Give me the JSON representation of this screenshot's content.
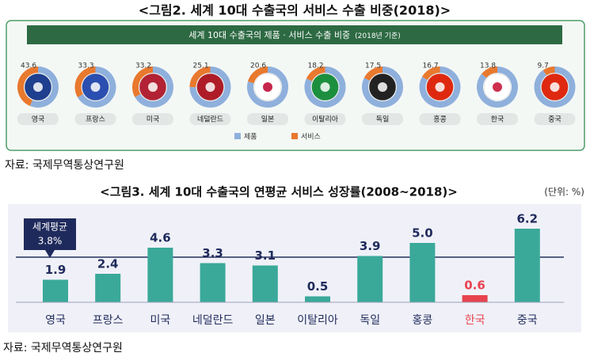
{
  "chart_data": [
    {
      "type": "donut",
      "title": "<그림2. 세계 10대 수출국의 서비스 수출 비중(2018)>",
      "subtitle": "세계 10대 수출국의 제품 · 서비스 수출 비중",
      "note": "(2018년 기준)",
      "categories": [
        "영국",
        "프랑스",
        "미국",
        "네덜란드",
        "일본",
        "이탈리아",
        "독일",
        "홍콩",
        "한국",
        "중국"
      ],
      "series": [
        {
          "name": "제품",
          "color": "#8fb0dc",
          "values": [
            56.4,
            66.7,
            66.8,
            74.9,
            79.4,
            81.8,
            82.5,
            83.3,
            86.2,
            90.3
          ]
        },
        {
          "name": "서비스",
          "color": "#e8792e",
          "values": [
            43.6,
            33.3,
            33.2,
            25.1,
            20.6,
            18.2,
            17.5,
            16.7,
            13.8,
            9.7
          ],
          "value_labels": [
            "43.6",
            "33.3",
            "33.2",
            "25.1",
            "20.6",
            "18.2",
            "17.5",
            "16.7",
            "13.8",
            "9.7"
          ]
        }
      ],
      "source": "자료: 국제무역통상연구원"
    },
    {
      "type": "bar",
      "title": "<그림3. 세계 10대 수출국의 연평균 서비스 성장률(2008~2018)>",
      "unit": "(단위: %)",
      "categories": [
        "영국",
        "프랑스",
        "미국",
        "네덜란드",
        "일본",
        "이탈리아",
        "독일",
        "홍콩",
        "한국",
        "중국"
      ],
      "values": [
        1.9,
        2.4,
        4.6,
        3.3,
        3.1,
        0.5,
        3.9,
        5.0,
        0.6,
        6.2
      ],
      "value_labels": [
        "1.9",
        "2.4",
        "4.6",
        "3.3",
        "3.1",
        "0.5",
        "3.9",
        "5.0",
        "0.6",
        "6.2"
      ],
      "colors": [
        "#3aa99a",
        "#3aa99a",
        "#3aa99a",
        "#3aa99a",
        "#3aa99a",
        "#3aa99a",
        "#3aa99a",
        "#3aa99a",
        "#e8424f",
        "#3aa99a"
      ],
      "ylim": [
        0,
        7
      ],
      "reference": {
        "name": "세계평균",
        "value": 3.8,
        "label": "3.8%"
      },
      "source": "자료: 국제무역통상연구원"
    }
  ]
}
